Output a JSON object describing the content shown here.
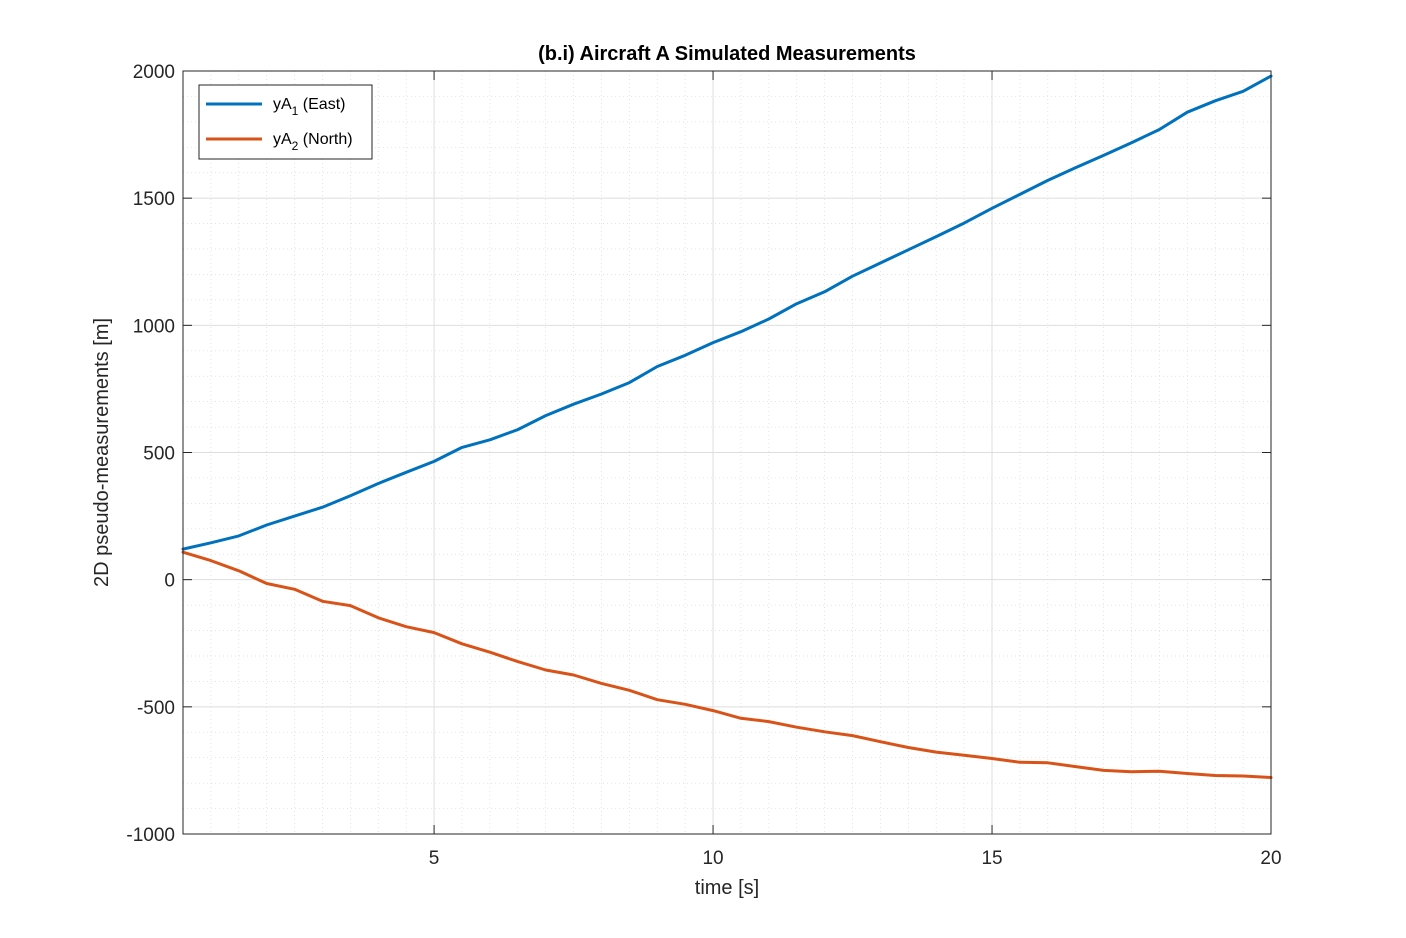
{
  "chart_data": {
    "type": "line",
    "title": "(b.i) Aircraft A Simulated Measurements",
    "xlabel": "time [s]",
    "ylabel": "2D pseudo-measurements [m]",
    "xlim": [
      0.5,
      20
    ],
    "ylim": [
      -1000,
      2000
    ],
    "xticks": [
      5,
      10,
      15,
      20
    ],
    "xtick_labels": [
      "5",
      "10",
      "15",
      "20"
    ],
    "yticks": [
      -1000,
      -500,
      0,
      500,
      1000,
      1500,
      2000
    ],
    "ytick_labels": [
      "-1000",
      "-500",
      "0",
      "500",
      "1000",
      "1500",
      "2000"
    ],
    "x_minor_step": 0.5,
    "y_minor_step": 100,
    "grid": true,
    "minor_grid": true,
    "legend_position": "top-left",
    "x": [
      0.5,
      1,
      1.5,
      2,
      2.5,
      3,
      3.5,
      4,
      4.5,
      5,
      5.5,
      6,
      6.5,
      7,
      7.5,
      8,
      8.5,
      9,
      9.5,
      10,
      10.5,
      11,
      11.5,
      12,
      12.5,
      13,
      13.5,
      14,
      14.5,
      15,
      15.5,
      16,
      16.5,
      17,
      17.5,
      18,
      18.5,
      19,
      19.5,
      20
    ],
    "series": [
      {
        "name": "yA",
        "subscript": "1",
        "suffix": " (East)",
        "color": "#0072BD",
        "values": [
          120,
          145,
          172,
          215,
          250,
          285,
          330,
          378,
          422,
          465,
          520,
          550,
          590,
          645,
          690,
          730,
          775,
          838,
          882,
          932,
          975,
          1025,
          1085,
          1132,
          1193,
          1245,
          1297,
          1349,
          1402,
          1460,
          1515,
          1570,
          1620,
          1668,
          1718,
          1770,
          1838,
          1883,
          1920,
          1980
        ]
      },
      {
        "name": "yA",
        "subscript": "2",
        "suffix": " (North)",
        "color": "#D95319",
        "values": [
          108,
          75,
          35,
          -15,
          -38,
          -85,
          -102,
          -150,
          -185,
          -208,
          -252,
          -285,
          -322,
          -355,
          -375,
          -408,
          -435,
          -472,
          -490,
          -515,
          -545,
          -558,
          -580,
          -598,
          -613,
          -637,
          -660,
          -678,
          -690,
          -703,
          -718,
          -720,
          -735,
          -750,
          -755,
          -753,
          -762,
          -770,
          -772,
          -778
        ]
      }
    ]
  }
}
